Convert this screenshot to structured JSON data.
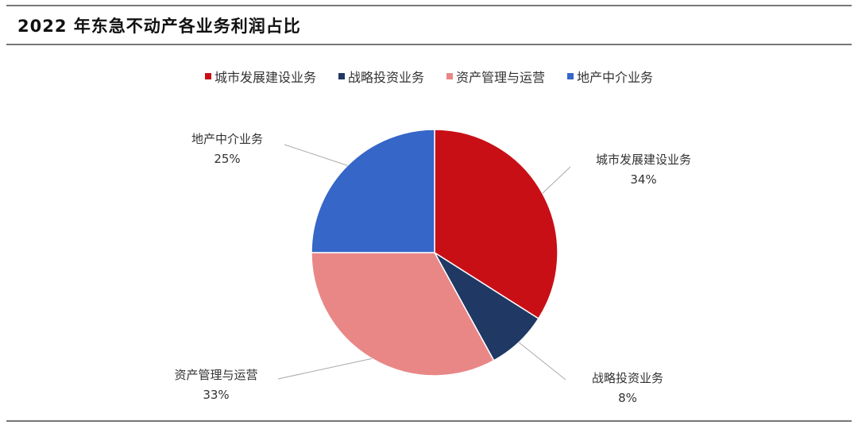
{
  "title": "2022 年东急不动产各业务利润占比",
  "chart_data": {
    "type": "pie",
    "title": "2022 年东急不动产各业务利润占比",
    "legend_position": "top",
    "start_angle": "12 o'clock, clockwise",
    "slices": [
      {
        "name": "城市发展建设业务",
        "value": 34,
        "label": "34%",
        "color": "#C90F16"
      },
      {
        "name": "战略投资业务",
        "value": 8,
        "label": "8%",
        "color": "#1F3864"
      },
      {
        "name": "资产管理与运营",
        "value": 33,
        "label": "33%",
        "color": "#E98787"
      },
      {
        "name": "地产中介业务",
        "value": 25,
        "label": "25%",
        "color": "#3566C8"
      }
    ]
  }
}
